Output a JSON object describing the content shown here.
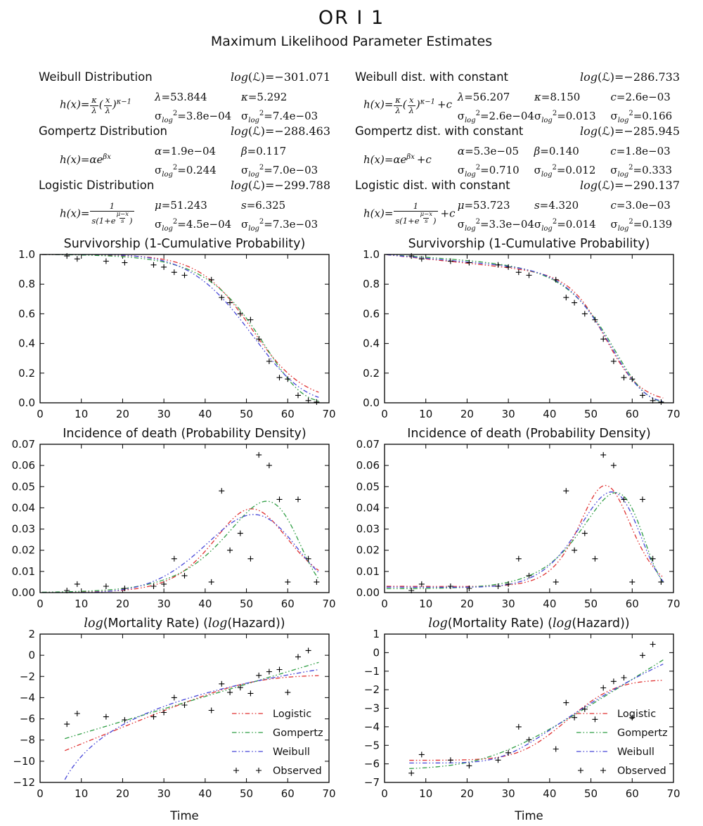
{
  "header": {
    "title": "OR I 1",
    "subtitle": "Maximum Likelihood Parameter Estimates"
  },
  "colors": {
    "logistic": "#e03131",
    "gompertz": "#2f9e44",
    "weibull": "#4646d8",
    "observed": "#000000",
    "axis": "#000000"
  },
  "loglik_label": {
    "pre": "log",
    "mid": "(ℒ)="
  },
  "sigma_label": {
    "base": "σ",
    "sub": "log",
    "sup": "2"
  },
  "models": {
    "left": [
      {
        "name": "Weibull Distribution",
        "loglik": "−301.071",
        "formula_kind": "weibull",
        "formula_text": "h(x) = κ/λ (x/λ)^(κ−1)",
        "params": [
          {
            "sym": "λ",
            "value": "53.844",
            "variance": "3.8e−04"
          },
          {
            "sym": "κ",
            "value": "5.292",
            "variance": "7.4e−03"
          }
        ]
      },
      {
        "name": "Gompertz Distribution",
        "loglik": "−288.463",
        "formula_kind": "gompertz",
        "formula_text": "h(x) = αe^(βx)",
        "params": [
          {
            "sym": "α",
            "value": "1.9e−04",
            "variance": "0.244"
          },
          {
            "sym": "β",
            "value": "0.117",
            "variance": "7.0e−03"
          }
        ]
      },
      {
        "name": "Logistic Distribution",
        "loglik": "−299.788",
        "formula_kind": "logistic",
        "formula_text": "h(x) = 1/(s(1+e^((μ−x)/s)))",
        "params": [
          {
            "sym": "μ",
            "value": "51.243",
            "variance": "4.5e−04"
          },
          {
            "sym": "s",
            "value": "6.325",
            "variance": "7.3e−03"
          }
        ]
      }
    ],
    "right": [
      {
        "name": "Weibull dist. with constant",
        "loglik": "−286.733",
        "formula_kind": "weibull_c",
        "formula_text": "h(x) = κ/λ (x/λ)^(κ−1) + c",
        "params": [
          {
            "sym": "λ",
            "value": "56.207",
            "variance": "2.6e−04"
          },
          {
            "sym": "κ",
            "value": "8.150",
            "variance": "0.013"
          },
          {
            "sym": "c",
            "value": "2.6e−03",
            "variance": "0.166"
          }
        ]
      },
      {
        "name": "Gompertz dist. with constant",
        "loglik": "−285.945",
        "formula_kind": "gompertz_c",
        "formula_text": "h(x) = αe^(βx) + c",
        "params": [
          {
            "sym": "α",
            "value": "5.3e−05",
            "variance": "0.710"
          },
          {
            "sym": "β",
            "value": "0.140",
            "variance": "0.012"
          },
          {
            "sym": "c",
            "value": "1.8e−03",
            "variance": "0.333"
          }
        ]
      },
      {
        "name": "Logistic dist. with constant",
        "loglik": "−290.137",
        "formula_kind": "logistic_c",
        "formula_text": "h(x) = 1/(s(1+e^((μ−x)/s))) + c",
        "params": [
          {
            "sym": "μ",
            "value": "53.723",
            "variance": "3.3e−04"
          },
          {
            "sym": "s",
            "value": "4.320",
            "variance": "0.014"
          },
          {
            "sym": "c",
            "value": "3.0e−03",
            "variance": "0.139"
          }
        ]
      }
    ]
  },
  "chart_data": [
    {
      "id": "surv_plain",
      "type": "line",
      "quantity": "survival",
      "title": "Survivorship (1-Cumulative Probability)",
      "italic_log_title": false,
      "xlim": [
        0,
        70
      ],
      "ylim": [
        0,
        1
      ],
      "xtick_vals": [
        0,
        10,
        20,
        30,
        40,
        50,
        60,
        70
      ],
      "xtick_labels": [
        "0",
        "10",
        "20",
        "30",
        "40",
        "50",
        "60",
        "70"
      ],
      "ytick_vals": [
        0,
        0.2,
        0.4,
        0.6,
        0.8,
        1.0
      ],
      "ytick_labels": [
        "0.0",
        "0.2",
        "0.4",
        "0.6",
        "0.8",
        "1.0"
      ],
      "curve_x_range": [
        0.5,
        67.5
      ],
      "xlabel": "",
      "legend": false,
      "series": [
        {
          "name": "Logistic",
          "color": "#e03131",
          "model": "logistic",
          "params": {
            "mu": 51.243,
            "s": 6.325,
            "c": 0
          }
        },
        {
          "name": "Gompertz",
          "color": "#2f9e44",
          "model": "gompertz",
          "params": {
            "alpha": 0.00019,
            "beta": 0.117,
            "c": 0
          }
        },
        {
          "name": "Weibull",
          "color": "#4646d8",
          "model": "weibull",
          "params": {
            "lambda": 53.844,
            "kappa": 5.292,
            "c": 0
          }
        }
      ],
      "observed": {
        "name": "Observed",
        "marker": "+",
        "color": "#000000",
        "x": [
          6.5,
          9,
          16,
          20.5,
          27.5,
          30,
          32.5,
          35,
          41.5,
          44,
          46,
          48.5,
          51,
          53,
          55.5,
          58,
          60,
          62.5,
          65,
          67
        ],
        "y": [
          0.99,
          0.97,
          0.955,
          0.945,
          0.93,
          0.915,
          0.88,
          0.86,
          0.83,
          0.71,
          0.675,
          0.6,
          0.56,
          0.43,
          0.28,
          0.17,
          0.16,
          0.05,
          0.015,
          0.005
        ]
      }
    },
    {
      "id": "surv_const",
      "type": "line",
      "quantity": "survival",
      "title": "Survivorship (1-Cumulative Probability)",
      "italic_log_title": false,
      "xlim": [
        0,
        70
      ],
      "ylim": [
        0,
        1
      ],
      "xtick_vals": [
        0,
        10,
        20,
        30,
        40,
        50,
        60,
        70
      ],
      "xtick_labels": [
        "0",
        "10",
        "20",
        "30",
        "40",
        "50",
        "60",
        "70"
      ],
      "ytick_vals": [
        0,
        0.2,
        0.4,
        0.6,
        0.8,
        1.0
      ],
      "ytick_labels": [
        "0.0",
        "0.2",
        "0.4",
        "0.6",
        "0.8",
        "1.0"
      ],
      "curve_x_range": [
        0.5,
        67.5
      ],
      "xlabel": "",
      "legend": false,
      "series": [
        {
          "name": "Logistic",
          "color": "#e03131",
          "model": "logistic",
          "params": {
            "mu": 53.723,
            "s": 4.32,
            "c": 0.003
          }
        },
        {
          "name": "Gompertz",
          "color": "#2f9e44",
          "model": "gompertz",
          "params": {
            "alpha": 5.3e-05,
            "beta": 0.14,
            "c": 0.0018
          }
        },
        {
          "name": "Weibull",
          "color": "#4646d8",
          "model": "weibull",
          "params": {
            "lambda": 56.207,
            "kappa": 8.15,
            "c": 0.0026
          }
        }
      ],
      "observed": {
        "name": "Observed",
        "marker": "+",
        "color": "#000000",
        "x": [
          6.5,
          9,
          16,
          20.5,
          27.5,
          30,
          32.5,
          35,
          41.5,
          44,
          46,
          48.5,
          51,
          53,
          55.5,
          58,
          60,
          62.5,
          65,
          67
        ],
        "y": [
          0.99,
          0.97,
          0.955,
          0.945,
          0.93,
          0.915,
          0.88,
          0.86,
          0.83,
          0.71,
          0.675,
          0.6,
          0.56,
          0.43,
          0.28,
          0.17,
          0.16,
          0.05,
          0.015,
          0.005
        ]
      }
    },
    {
      "id": "dens_plain",
      "type": "line",
      "quantity": "density",
      "title": "Incidence of death (Probability Density)",
      "italic_log_title": false,
      "xlim": [
        0,
        70
      ],
      "ylim": [
        0,
        0.07
      ],
      "xtick_vals": [
        0,
        10,
        20,
        30,
        40,
        50,
        60,
        70
      ],
      "xtick_labels": [
        "0",
        "10",
        "20",
        "30",
        "40",
        "50",
        "60",
        "70"
      ],
      "ytick_vals": [
        0,
        0.01,
        0.02,
        0.03,
        0.04,
        0.05,
        0.06,
        0.07
      ],
      "ytick_labels": [
        "0.00",
        "0.01",
        "0.02",
        "0.03",
        "0.04",
        "0.05",
        "0.06",
        "0.07"
      ],
      "curve_x_range": [
        0.5,
        67.5
      ],
      "xlabel": "",
      "legend": false,
      "series": [
        {
          "name": "Logistic",
          "color": "#e03131",
          "model": "logistic",
          "params": {
            "mu": 51.243,
            "s": 6.325,
            "c": 0
          }
        },
        {
          "name": "Gompertz",
          "color": "#2f9e44",
          "model": "gompertz",
          "params": {
            "alpha": 0.00019,
            "beta": 0.117,
            "c": 0
          }
        },
        {
          "name": "Weibull",
          "color": "#4646d8",
          "model": "weibull",
          "params": {
            "lambda": 53.844,
            "kappa": 5.292,
            "c": 0
          }
        }
      ],
      "observed": {
        "name": "Observed",
        "marker": "+",
        "color": "#000000",
        "x": [
          6.5,
          9,
          16,
          20.5,
          27.5,
          30,
          32.5,
          35,
          41.5,
          44,
          46,
          48.5,
          51,
          53,
          55.5,
          58,
          60,
          62.5,
          65,
          67
        ],
        "y": [
          0.001,
          0.004,
          0.003,
          0.002,
          0.003,
          0.004,
          0.016,
          0.008,
          0.005,
          0.048,
          0.02,
          0.028,
          0.016,
          0.065,
          0.06,
          0.044,
          0.005,
          0.044,
          0.016,
          0.005
        ]
      }
    },
    {
      "id": "dens_const",
      "type": "line",
      "quantity": "density",
      "title": "Incidence of death (Probability Density)",
      "italic_log_title": false,
      "xlim": [
        0,
        70
      ],
      "ylim": [
        0,
        0.07
      ],
      "xtick_vals": [
        0,
        10,
        20,
        30,
        40,
        50,
        60,
        70
      ],
      "xtick_labels": [
        "0",
        "10",
        "20",
        "30",
        "40",
        "50",
        "60",
        "70"
      ],
      "ytick_vals": [
        0,
        0.01,
        0.02,
        0.03,
        0.04,
        0.05,
        0.06,
        0.07
      ],
      "ytick_labels": [
        "0.00",
        "0.01",
        "0.02",
        "0.03",
        "0.04",
        "0.05",
        "0.06",
        "0.07"
      ],
      "curve_x_range": [
        0.5,
        67.5
      ],
      "xlabel": "",
      "legend": false,
      "series": [
        {
          "name": "Logistic",
          "color": "#e03131",
          "model": "logistic",
          "params": {
            "mu": 53.723,
            "s": 4.32,
            "c": 0.003
          }
        },
        {
          "name": "Gompertz",
          "color": "#2f9e44",
          "model": "gompertz",
          "params": {
            "alpha": 5.3e-05,
            "beta": 0.14,
            "c": 0.0018
          }
        },
        {
          "name": "Weibull",
          "color": "#4646d8",
          "model": "weibull",
          "params": {
            "lambda": 56.207,
            "kappa": 8.15,
            "c": 0.0026
          }
        }
      ],
      "observed": {
        "name": "Observed",
        "marker": "+",
        "color": "#000000",
        "x": [
          6.5,
          9,
          16,
          20.5,
          27.5,
          30,
          32.5,
          35,
          41.5,
          44,
          46,
          48.5,
          51,
          53,
          55.5,
          58,
          60,
          62.5,
          65,
          67
        ],
        "y": [
          0.001,
          0.004,
          0.003,
          0.002,
          0.003,
          0.004,
          0.016,
          0.008,
          0.005,
          0.048,
          0.02,
          0.028,
          0.016,
          0.065,
          0.06,
          0.044,
          0.005,
          0.044,
          0.016,
          0.005
        ]
      }
    },
    {
      "id": "haz_plain",
      "type": "line",
      "quantity": "log_hazard",
      "title": "log(Mortality Rate) (log(Hazard))",
      "italic_log_title": true,
      "xlim": [
        0,
        70
      ],
      "ylim": [
        -12,
        2
      ],
      "xtick_vals": [
        0,
        10,
        20,
        30,
        40,
        50,
        60,
        70
      ],
      "xtick_labels": [
        "0",
        "10",
        "20",
        "30",
        "40",
        "50",
        "60",
        "70"
      ],
      "ytick_vals": [
        -12,
        -10,
        -8,
        -6,
        -4,
        -2,
        0,
        2
      ],
      "ytick_labels": [
        "−12",
        "−10",
        "−8",
        "−6",
        "−4",
        "−2",
        "0",
        "2"
      ],
      "curve_x_range": [
        6,
        67.5
      ],
      "xlabel": "Time",
      "legend": true,
      "series": [
        {
          "name": "Logistic",
          "color": "#e03131",
          "model": "logistic",
          "params": {
            "mu": 51.243,
            "s": 6.325,
            "c": 0
          }
        },
        {
          "name": "Gompertz",
          "color": "#2f9e44",
          "model": "gompertz",
          "params": {
            "alpha": 0.00019,
            "beta": 0.117,
            "c": 0
          }
        },
        {
          "name": "Weibull",
          "color": "#4646d8",
          "model": "weibull",
          "params": {
            "lambda": 53.844,
            "kappa": 5.292,
            "c": 0
          }
        }
      ],
      "observed": {
        "name": "Observed",
        "marker": "+",
        "color": "#000000",
        "x": [
          6.5,
          9,
          16,
          20.5,
          27.5,
          30,
          32.5,
          35,
          41.5,
          44,
          46,
          48.5,
          51,
          53,
          55.5,
          58,
          60,
          62.5,
          65,
          67
        ],
        "y": [
          -6.5,
          -5.5,
          -5.8,
          -6.1,
          -5.8,
          -5.4,
          -4.0,
          -4.7,
          -5.2,
          -2.7,
          -3.5,
          -3.05,
          -3.6,
          -1.9,
          -1.55,
          -1.35,
          -3.5,
          -0.15,
          0.45,
          null
        ]
      }
    },
    {
      "id": "haz_const",
      "type": "line",
      "quantity": "log_hazard",
      "title": "log(Mortality Rate) (log(Hazard))",
      "italic_log_title": true,
      "xlim": [
        0,
        70
      ],
      "ylim": [
        -7,
        1
      ],
      "xtick_vals": [
        0,
        10,
        20,
        30,
        40,
        50,
        60,
        70
      ],
      "xtick_labels": [
        "0",
        "10",
        "20",
        "30",
        "40",
        "50",
        "60",
        "70"
      ],
      "ytick_vals": [
        -7,
        -6,
        -5,
        -4,
        -3,
        -2,
        -1,
        0,
        1
      ],
      "ytick_labels": [
        "−7",
        "−6",
        "−5",
        "−4",
        "−3",
        "−2",
        "−1",
        "0",
        "1"
      ],
      "curve_x_range": [
        6,
        67.5
      ],
      "xlabel": "Time",
      "legend": true,
      "series": [
        {
          "name": "Logistic",
          "color": "#e03131",
          "model": "logistic",
          "params": {
            "mu": 53.723,
            "s": 4.32,
            "c": 0.003
          }
        },
        {
          "name": "Gompertz",
          "color": "#2f9e44",
          "model": "gompertz",
          "params": {
            "alpha": 5.3e-05,
            "beta": 0.14,
            "c": 0.0018
          }
        },
        {
          "name": "Weibull",
          "color": "#4646d8",
          "model": "weibull",
          "params": {
            "lambda": 56.207,
            "kappa": 8.15,
            "c": 0.0026
          }
        }
      ],
      "observed": {
        "name": "Observed",
        "marker": "+",
        "color": "#000000",
        "x": [
          6.5,
          9,
          16,
          20.5,
          27.5,
          30,
          32.5,
          35,
          41.5,
          44,
          46,
          48.5,
          51,
          53,
          55.5,
          58,
          60,
          62.5,
          65,
          67
        ],
        "y": [
          -6.5,
          -5.5,
          -5.8,
          -6.1,
          -5.8,
          -5.4,
          -4.0,
          -4.7,
          -5.2,
          -2.7,
          -3.5,
          -3.05,
          -3.6,
          -1.9,
          -1.55,
          -1.35,
          -3.5,
          -0.15,
          0.45,
          null
        ]
      }
    }
  ]
}
